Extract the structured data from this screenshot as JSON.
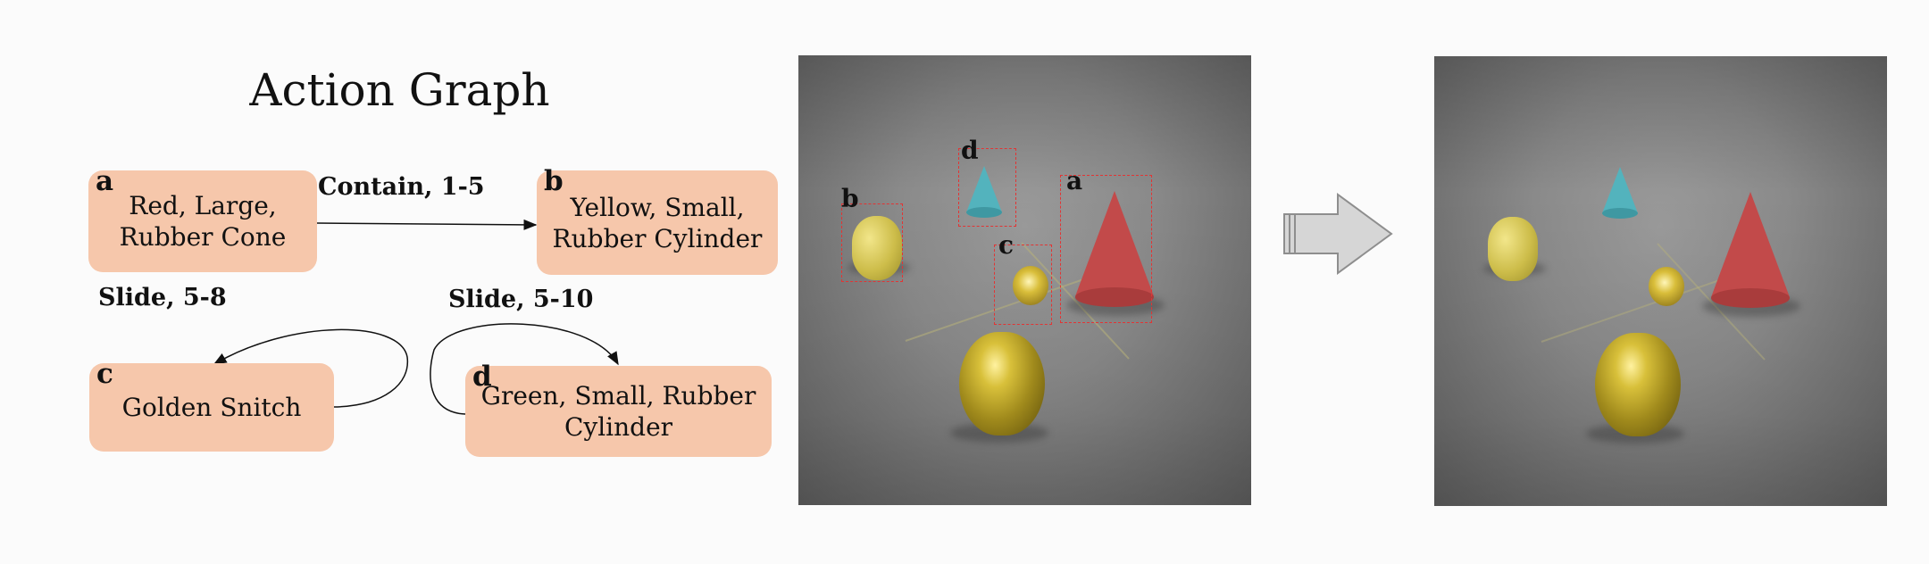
{
  "title": "Action Graph",
  "nodes": {
    "a": {
      "letter": "a",
      "line1": "Red, Large,",
      "line2": "Rubber Cone"
    },
    "b": {
      "letter": "b",
      "line1": "Yellow, Small,",
      "line2": "Rubber Cylinder"
    },
    "c": {
      "letter": "c",
      "line1": "Golden Snitch",
      "line2": ""
    },
    "d": {
      "letter": "d",
      "line1": "Green, Small, Rubber",
      "line2": "Cylinder"
    }
  },
  "edges": {
    "contain": "Contain, 1-5",
    "slide_c": "Slide, 5-8",
    "slide_d": "Slide, 5-10"
  },
  "scene_labels": {
    "a": "a",
    "b": "b",
    "c": "c",
    "d": "d"
  },
  "colors": {
    "node_fill": "#f6c7ab",
    "bbox": "#e23434",
    "arrow_fill": "#d6d6d6"
  },
  "icons": {
    "transition": "right-arrow-icon"
  }
}
